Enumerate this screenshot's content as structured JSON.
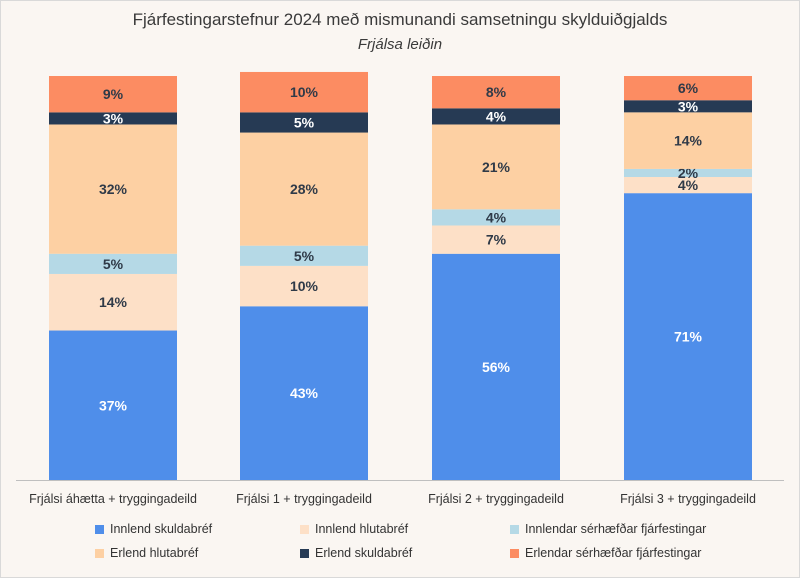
{
  "chart_data": {
    "type": "bar",
    "stacked": true,
    "title": "Fjárfestingarstefnur 2024 með mismunandi samsetningu skylduiðgjalds",
    "subtitle": "Frjálsa leiðin",
    "categories": [
      "Frjálsi áhætta + tryggingadeild",
      "Frjálsi 1 + tryggingadeild",
      "Frjálsi 2 + tryggingadeild",
      "Frjálsi 3 + tryggingadeild"
    ],
    "series": [
      {
        "name": "Innlend skuldabréf",
        "color": "#4f8eea",
        "label_color": "#ffffff",
        "values": [
          37,
          43,
          56,
          71
        ]
      },
      {
        "name": "Innlend hlutabréf",
        "color": "#fde0c7",
        "label_color": "#2f3a48",
        "values": [
          14,
          10,
          7,
          4
        ]
      },
      {
        "name": "Innlendar sérhæfðar fjárfestingar",
        "color": "#b5d9e6",
        "label_color": "#2f3a48",
        "values": [
          5,
          5,
          4,
          2
        ]
      },
      {
        "name": "Erlend hlutabréf",
        "color": "#fdd0a3",
        "label_color": "#2f3a48",
        "values": [
          32,
          28,
          21,
          14
        ]
      },
      {
        "name": "Erlend skuldabréf",
        "color": "#263a54",
        "label_color": "#ffffff",
        "values": [
          3,
          5,
          4,
          3
        ]
      },
      {
        "name": "Erlendar sérhæfðar fjárfestingar",
        "color": "#fc8c62",
        "label_color": "#2f3a48",
        "values": [
          9,
          10,
          8,
          6
        ]
      }
    ],
    "value_suffix": "%",
    "ylim": [
      0,
      100
    ],
    "grid": false,
    "legend_position": "bottom"
  }
}
